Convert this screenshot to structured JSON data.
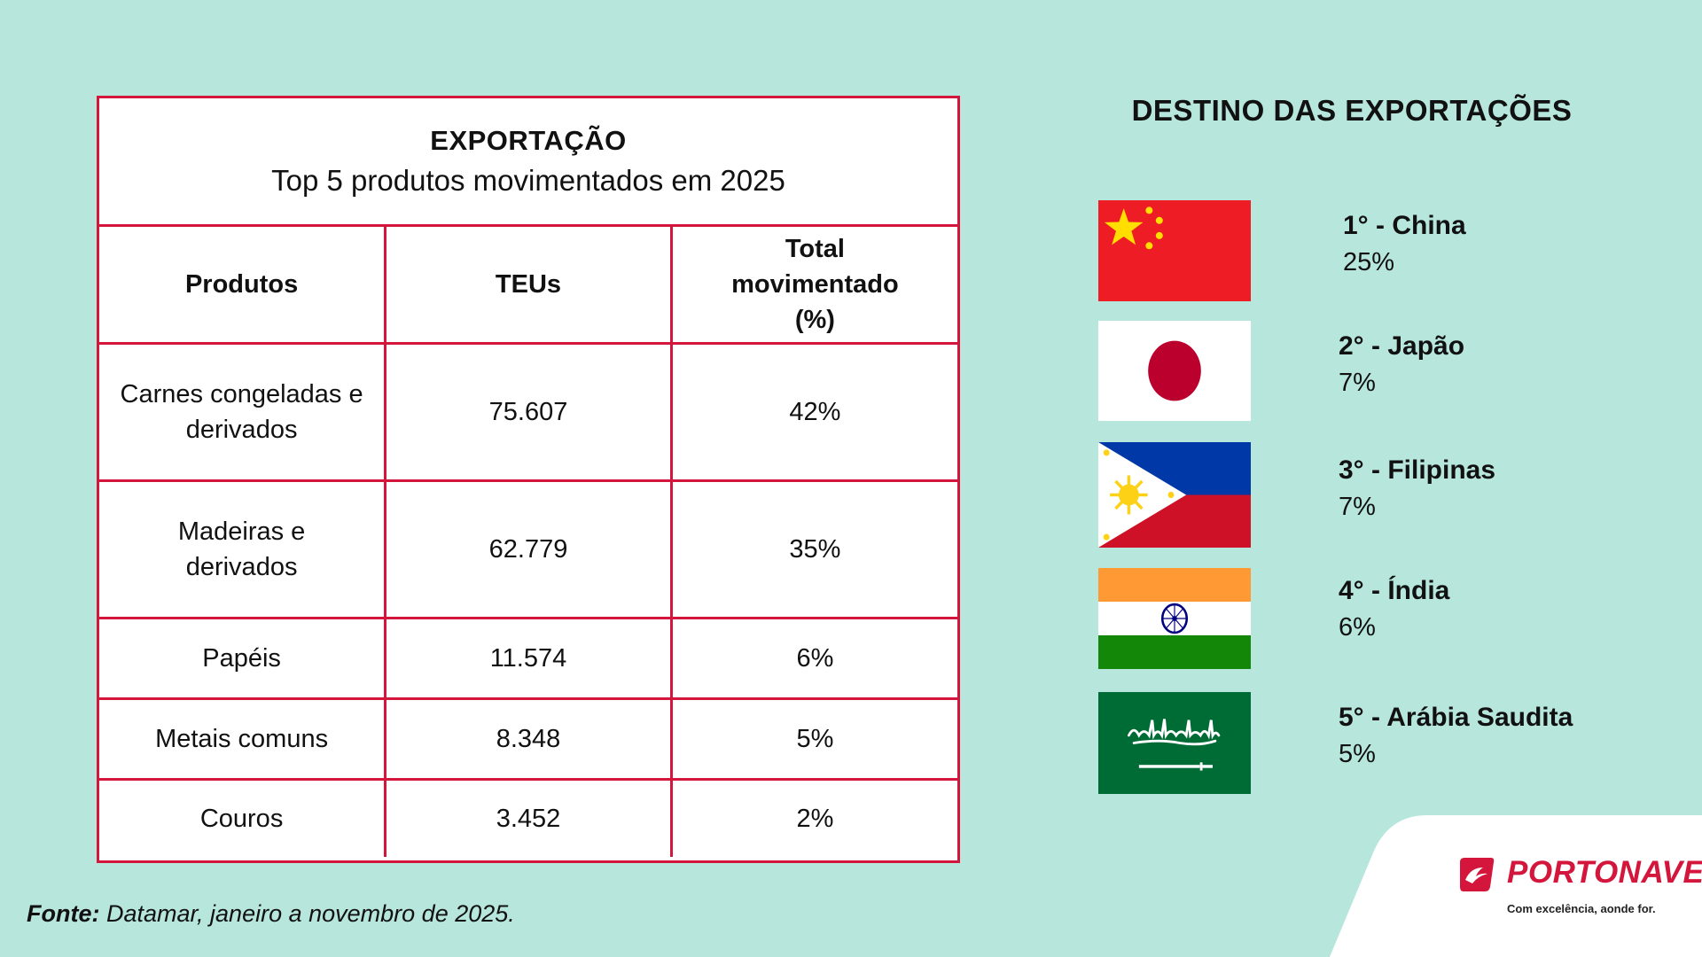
{
  "chart_data": {
    "type": "table",
    "title": "EXPORTAÇÃO",
    "subtitle": "Top 5 produtos movimentados em 2025",
    "columns": [
      "Produtos",
      "TEUs",
      "Total movimentado (%)"
    ],
    "rows": [
      {
        "produto": "Carnes congeladas e derivados",
        "teus": "75.607",
        "total": "42%"
      },
      {
        "produto": "Madeiras e derivados",
        "teus": "62.779",
        "total": "35%"
      },
      {
        "produto": "Papéis",
        "teus": "11.574",
        "total": "6%"
      },
      {
        "produto": "Metais comuns",
        "teus": "8.348",
        "total": "5%"
      },
      {
        "produto": "Couros",
        "teus": "3.452",
        "total": "2%"
      }
    ]
  },
  "source": {
    "label": "Fonte:",
    "text": "Datamar, janeiro a novembro de 2025."
  },
  "destinations": {
    "title": "DESTINO DAS EXPORTAÇÕES",
    "items": [
      {
        "rank": "1° - China",
        "pct": "25%",
        "flag": "china-flag"
      },
      {
        "rank": "2° - Japão",
        "pct": "7%",
        "flag": "japan-flag"
      },
      {
        "rank": "3° - Filipinas",
        "pct": "7%",
        "flag": "philippines-flag"
      },
      {
        "rank": "4° - Índia",
        "pct": "6%",
        "flag": "india-flag"
      },
      {
        "rank": "5° - Arábia Saudita",
        "pct": "5%",
        "flag": "saudi-arabia-flag"
      }
    ]
  },
  "logo": {
    "name": "PORTONAVE",
    "tagline": "Com excelência, aonde for."
  },
  "colors": {
    "background": "#b7e6dc",
    "accent": "#d4163c"
  }
}
